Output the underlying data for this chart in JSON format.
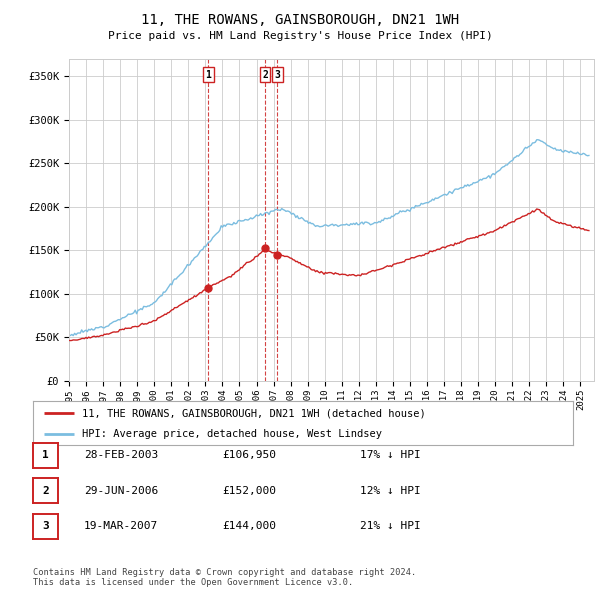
{
  "title": "11, THE ROWANS, GAINSBOROUGH, DN21 1WH",
  "subtitle": "Price paid vs. HM Land Registry's House Price Index (HPI)",
  "ylabel_ticks": [
    "£0",
    "£50K",
    "£100K",
    "£150K",
    "£200K",
    "£250K",
    "£300K",
    "£350K"
  ],
  "ytick_values": [
    0,
    50000,
    100000,
    150000,
    200000,
    250000,
    300000,
    350000
  ],
  "ylim": [
    0,
    370000
  ],
  "xlim_start": 1995.0,
  "xlim_end": 2025.8,
  "hpi_color": "#7bbde0",
  "price_color": "#cc2222",
  "dashed_color": "#cc2222",
  "sale_dates": [
    2003.17,
    2006.5,
    2007.22
  ],
  "sale_prices": [
    106950,
    152000,
    144000
  ],
  "sale_labels": [
    "1",
    "2",
    "3"
  ],
  "legend_property": "11, THE ROWANS, GAINSBOROUGH, DN21 1WH (detached house)",
  "legend_hpi": "HPI: Average price, detached house, West Lindsey",
  "table_rows": [
    {
      "num": "1",
      "date": "28-FEB-2003",
      "price": "£106,950",
      "hpi": "17% ↓ HPI"
    },
    {
      "num": "2",
      "date": "29-JUN-2006",
      "price": "£152,000",
      "hpi": "12% ↓ HPI"
    },
    {
      "num": "3",
      "date": "19-MAR-2007",
      "price": "£144,000",
      "hpi": "21% ↓ HPI"
    }
  ],
  "footnote": "Contains HM Land Registry data © Crown copyright and database right 2024.\nThis data is licensed under the Open Government Licence v3.0.",
  "background_color": "#ffffff",
  "grid_color": "#cccccc"
}
